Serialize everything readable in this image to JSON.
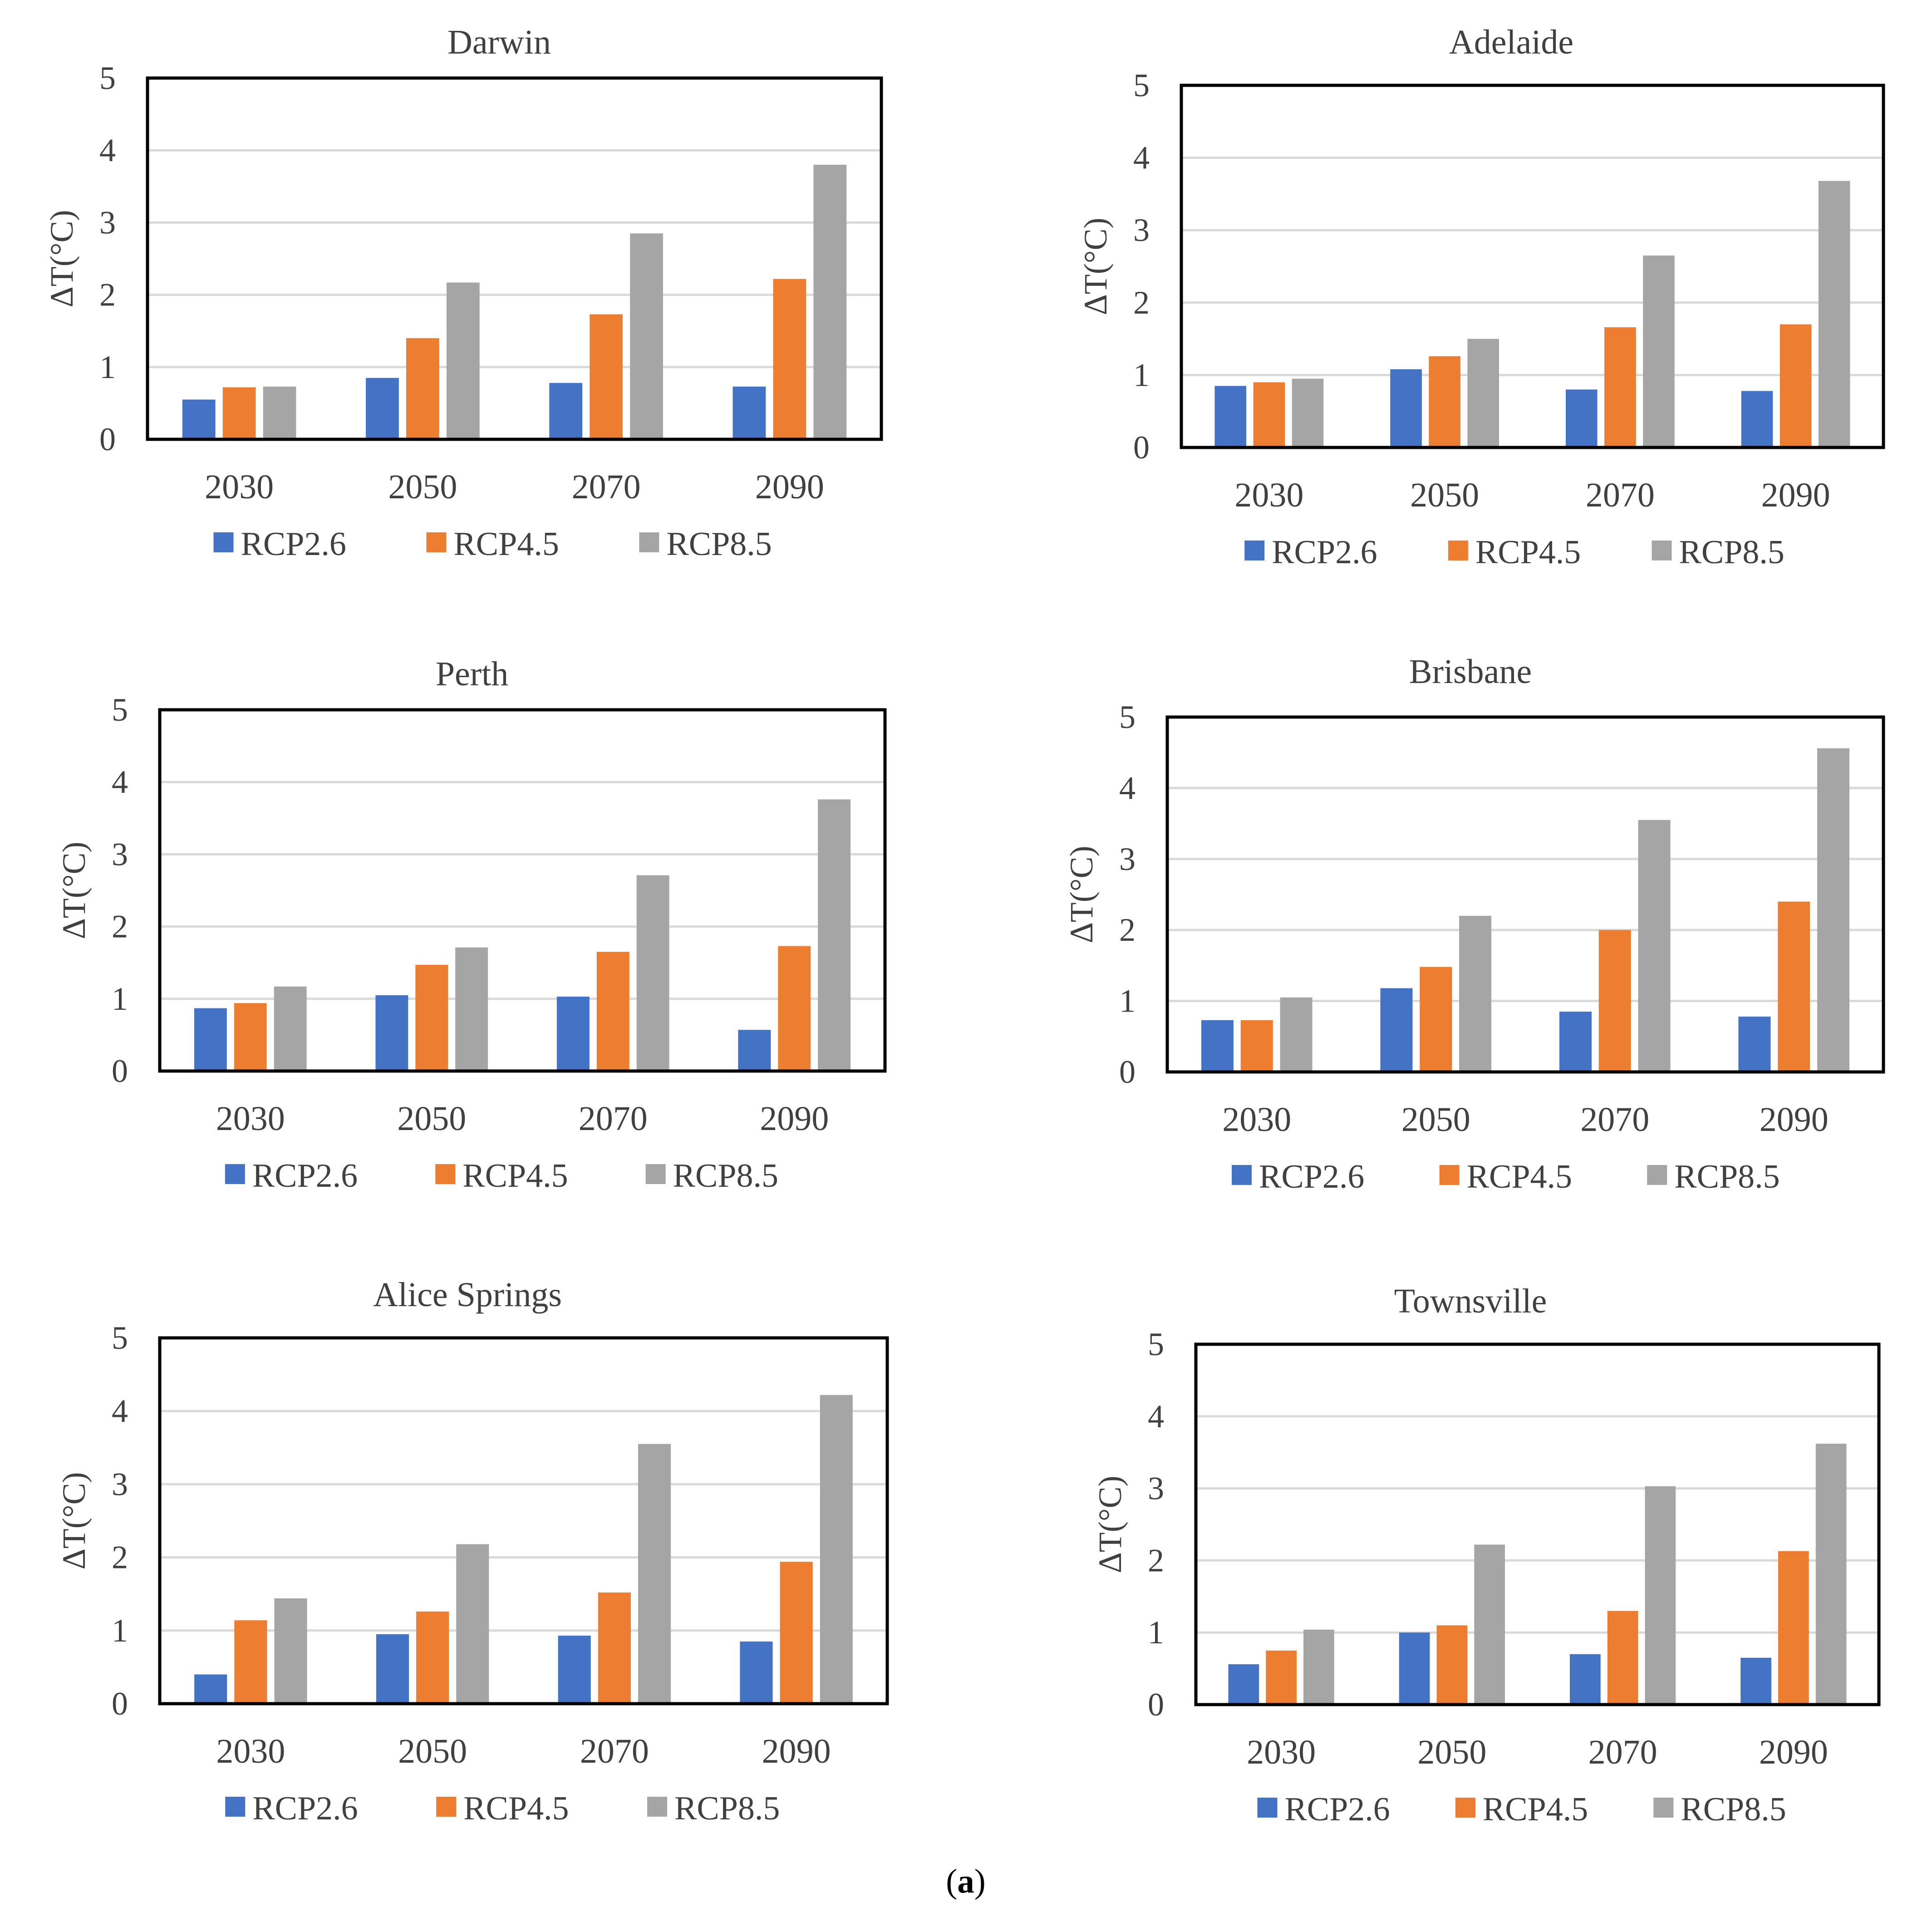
{
  "figure": {
    "caption_prefix": "(",
    "caption_letter": "a",
    "caption_suffix": ")"
  },
  "colors": {
    "RCP2.6": "#4472C4",
    "RCP4.5": "#ED7D31",
    "RCP8.5": "#A5A5A5",
    "grid": "#D9D9D9",
    "frame": "#000000"
  },
  "chart_data": [
    {
      "type": "bar",
      "title": "Darwin",
      "ylabel": "ΔT(°C)",
      "ylim": [
        0,
        5
      ],
      "yticks": [
        "0",
        "1",
        "2",
        "3",
        "4",
        "5"
      ],
      "categories": [
        "2030",
        "2050",
        "2070",
        "2090"
      ],
      "legend_position": "bottom",
      "series": [
        {
          "name": "RCP2.6",
          "color": "#4472C4",
          "values": [
            0.55,
            0.85,
            0.78,
            0.73
          ]
        },
        {
          "name": "RCP4.5",
          "color": "#ED7D31",
          "values": [
            0.72,
            1.4,
            1.73,
            2.22
          ]
        },
        {
          "name": "RCP8.5",
          "color": "#A5A5A5",
          "values": [
            0.73,
            2.17,
            2.85,
            3.8
          ]
        }
      ]
    },
    {
      "type": "bar",
      "title": "Adelaide",
      "ylabel": "ΔT(°C)",
      "ylim": [
        0,
        5
      ],
      "yticks": [
        "0",
        "1",
        "2",
        "3",
        "4",
        "5"
      ],
      "categories": [
        "2030",
        "2050",
        "2070",
        "2090"
      ],
      "legend_position": "bottom",
      "series": [
        {
          "name": "RCP2.6",
          "color": "#4472C4",
          "values": [
            0.85,
            1.08,
            0.8,
            0.78
          ]
        },
        {
          "name": "RCP4.5",
          "color": "#ED7D31",
          "values": [
            0.9,
            1.26,
            1.66,
            1.7
          ]
        },
        {
          "name": "RCP8.5",
          "color": "#A5A5A5",
          "values": [
            0.95,
            1.5,
            2.65,
            3.68
          ]
        }
      ]
    },
    {
      "type": "bar",
      "title": "Perth",
      "ylabel": "ΔT(°C)",
      "ylim": [
        0,
        5
      ],
      "yticks": [
        "0",
        "1",
        "2",
        "3",
        "4",
        "5"
      ],
      "categories": [
        "2030",
        "2050",
        "2070",
        "2090"
      ],
      "legend_position": "bottom",
      "series": [
        {
          "name": "RCP2.6",
          "color": "#4472C4",
          "values": [
            0.87,
            1.05,
            1.03,
            0.57
          ]
        },
        {
          "name": "RCP4.5",
          "color": "#ED7D31",
          "values": [
            0.94,
            1.47,
            1.65,
            1.73
          ]
        },
        {
          "name": "RCP8.5",
          "color": "#A5A5A5",
          "values": [
            1.17,
            1.71,
            2.71,
            3.76
          ]
        }
      ]
    },
    {
      "type": "bar",
      "title": "Brisbane",
      "ylabel": "ΔT(°C)",
      "ylim": [
        0,
        5
      ],
      "yticks": [
        "0",
        "1",
        "2",
        "3",
        "4",
        "5"
      ],
      "categories": [
        "2030",
        "2050",
        "2070",
        "2090"
      ],
      "legend_position": "bottom",
      "series": [
        {
          "name": "RCP2.6",
          "color": "#4472C4",
          "values": [
            0.73,
            1.18,
            0.85,
            0.78
          ]
        },
        {
          "name": "RCP4.5",
          "color": "#ED7D31",
          "values": [
            0.73,
            1.48,
            2.0,
            2.4
          ]
        },
        {
          "name": "RCP8.5",
          "color": "#A5A5A5",
          "values": [
            1.05,
            2.2,
            3.55,
            4.56
          ]
        }
      ]
    },
    {
      "type": "bar",
      "title": "Alice Springs",
      "ylabel": "ΔT(°C)",
      "ylim": [
        0,
        5
      ],
      "yticks": [
        "0",
        "1",
        "2",
        "3",
        "4",
        "5"
      ],
      "categories": [
        "2030",
        "2050",
        "2070",
        "2090"
      ],
      "legend_position": "bottom",
      "series": [
        {
          "name": "RCP2.6",
          "color": "#4472C4",
          "values": [
            0.4,
            0.95,
            0.93,
            0.85
          ]
        },
        {
          "name": "RCP4.5",
          "color": "#ED7D31",
          "values": [
            1.14,
            1.26,
            1.52,
            1.94
          ]
        },
        {
          "name": "RCP8.5",
          "color": "#A5A5A5",
          "values": [
            1.44,
            2.18,
            3.55,
            4.22
          ]
        }
      ]
    },
    {
      "type": "bar",
      "title": "Townsville",
      "ylabel": "ΔT(°C)",
      "ylim": [
        0,
        5
      ],
      "yticks": [
        "0",
        "1",
        "2",
        "3",
        "4",
        "5"
      ],
      "categories": [
        "2030",
        "2050",
        "2070",
        "2090"
      ],
      "legend_position": "bottom",
      "series": [
        {
          "name": "RCP2.6",
          "color": "#4472C4",
          "values": [
            0.56,
            1.0,
            0.7,
            0.65
          ]
        },
        {
          "name": "RCP4.5",
          "color": "#ED7D31",
          "values": [
            0.75,
            1.1,
            1.3,
            2.13
          ]
        },
        {
          "name": "RCP8.5",
          "color": "#A5A5A5",
          "values": [
            1.04,
            2.22,
            3.03,
            3.62
          ]
        }
      ]
    }
  ]
}
